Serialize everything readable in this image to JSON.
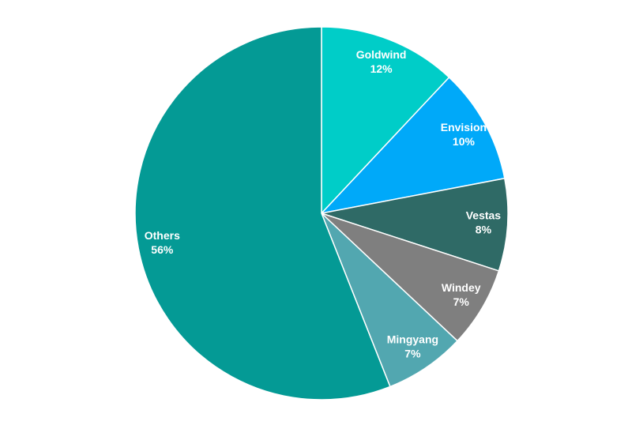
{
  "chart_data": {
    "type": "pie",
    "categories": [
      "Goldwind",
      "Envision",
      "Vestas",
      "Windey",
      "Mingyang",
      "Others"
    ],
    "values": [
      12,
      10,
      8,
      7,
      7,
      56
    ],
    "value_labels": [
      "12%",
      "10%",
      "8%",
      "7%",
      "7%",
      "56%"
    ],
    "colors": [
      "#00cdc8",
      "#00a9f9",
      "#2f6a66",
      "#7f7f7f",
      "#52a7b0",
      "#049a95"
    ]
  }
}
